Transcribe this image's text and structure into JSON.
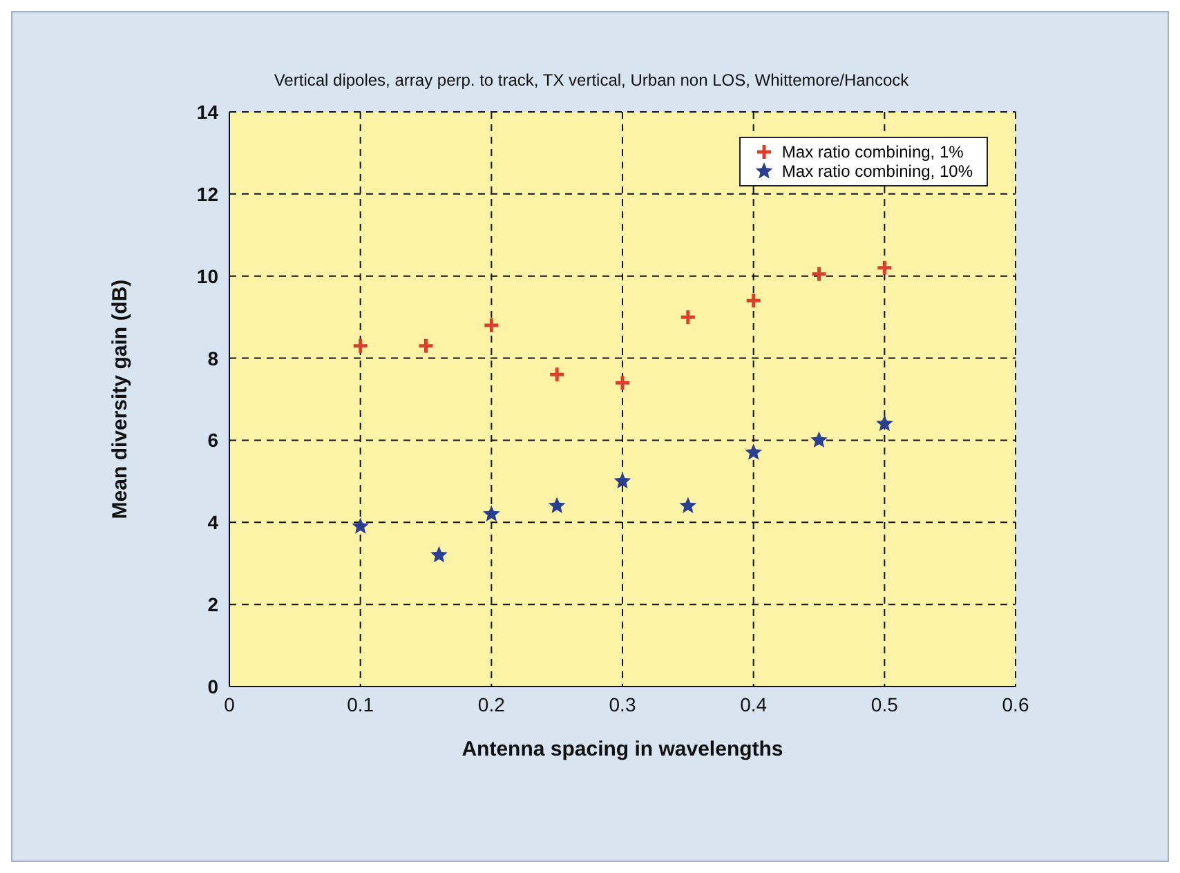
{
  "chart_data": {
    "type": "scatter",
    "title": "Vertical dipoles, array perp. to track, TX vertical, Urban non LOS, Whittemore/Hancock",
    "xlabel": "Antenna spacing in wavelengths",
    "ylabel": "Mean diversity gain (dB)",
    "xlim": [
      0,
      0.6
    ],
    "xticks": [
      0,
      0.1,
      0.2,
      0.3,
      0.4,
      0.5,
      0.6
    ],
    "ylim": [
      0,
      14
    ],
    "yticks": [
      0,
      2,
      4,
      6,
      8,
      10,
      12,
      14
    ],
    "grid": true,
    "legend": "top right",
    "series": [
      {
        "name": "Max ratio combining, 1%",
        "color": "#d9402c",
        "marker": "cross",
        "x": [
          0.1,
          0.15,
          0.2,
          0.25,
          0.3,
          0.35,
          0.4,
          0.45,
          0.5
        ],
        "values": [
          8.3,
          8.3,
          8.8,
          7.6,
          7.4,
          9.0,
          9.4,
          10.05,
          10.2
        ]
      },
      {
        "name": "Max ratio combining, 10%",
        "color": "#2a3f8f",
        "marker": "star",
        "x": [
          0.1,
          0.16,
          0.2,
          0.25,
          0.3,
          0.35,
          0.4,
          0.45,
          0.5
        ],
        "values": [
          3.9,
          3.2,
          4.2,
          4.4,
          5.0,
          4.4,
          5.7,
          6.0,
          6.4
        ]
      }
    ]
  }
}
